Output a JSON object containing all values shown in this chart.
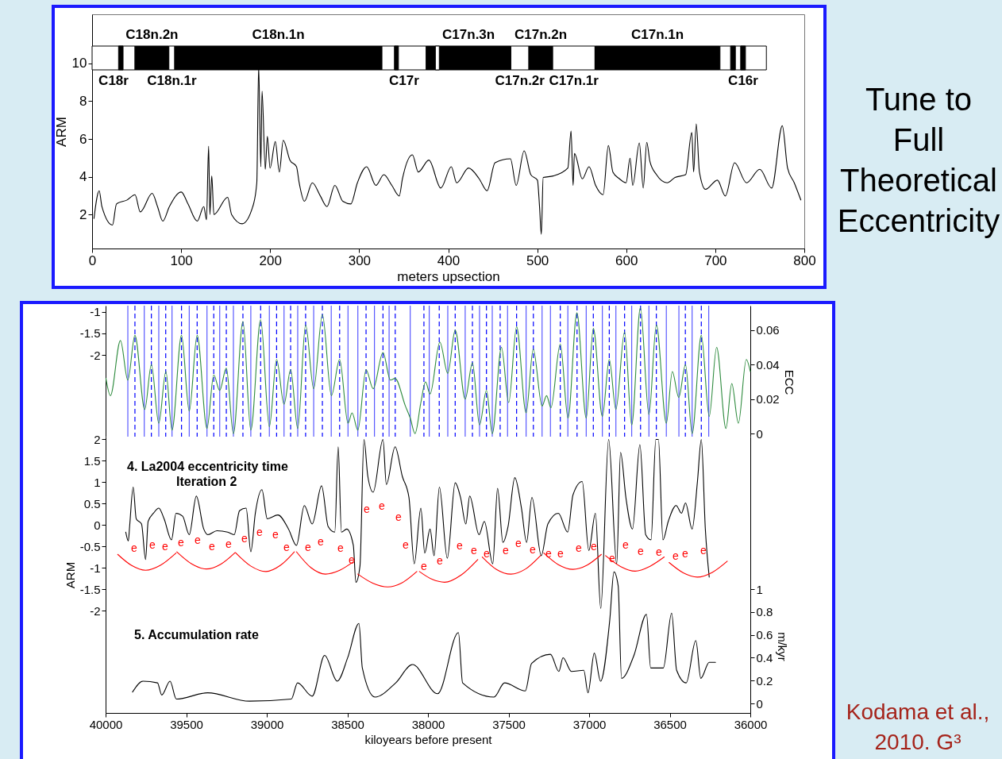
{
  "chart_data": [
    {
      "type": "line",
      "xlabel": "meters upsection",
      "ylabel": "ARM",
      "xlim": [
        0,
        800
      ],
      "xticks": [
        0,
        100,
        200,
        300,
        400,
        500,
        600,
        700,
        800
      ],
      "ylim": [
        0.2,
        12.6
      ],
      "yticks": [
        2,
        4,
        6,
        8,
        10
      ],
      "series": [
        {
          "color": "#000000",
          "x": [
            2.1,
            8.0,
            11.0,
            22.9,
            27.4,
            39.3,
            48.2,
            54.1,
            67.5,
            73.5,
            79.4,
            86.8,
            100.2,
            107.7,
            118.1,
            125.5,
            128.5,
            130.9,
            132.3,
            134.4,
            136.8,
            152.3,
            156.7,
            168.6,
            180.5,
            185.0,
            187.1,
            189.5,
            190.9,
            194.5,
            196.9,
            199.9,
            205.8,
            210.3,
            214.7,
            222.2,
            229.6,
            232.6,
            238.5,
            247.4,
            256.4,
            263.8,
            272.7,
            281.6,
            290.6,
            298.0,
            308.4,
            318.8,
            327.7,
            336.7,
            345.0,
            348.6,
            359.8,
            366.4,
            378.3,
            391.7,
            403.5,
            409.5,
            422.9,
            434.8,
            443.7,
            452.6,
            469.9,
            476.4,
            485.3,
            492.8,
            500.2,
            502.6,
            504.6,
            506.7,
            518.0,
            534.4,
            538.0,
            540.3,
            541.8,
            550.7,
            558.2,
            565.6,
            574.0,
            579.9,
            585.0,
            592.4,
            599.8,
            604.3,
            607.3,
            614.7,
            619.1,
            623.0,
            626.6,
            634.0,
            645.9,
            654.8,
            666.7,
            673.6,
            675.7,
            678.6,
            682.2,
            689.0,
            702.4,
            711.3,
            721.7,
            735.1,
            750.0,
            763.4,
            775.3,
            781.2,
            788.7,
            796.1
          ],
          "values": [
            1.79,
            3.26,
            2.42,
            1.44,
            2.56,
            2.77,
            3.05,
            2.14,
            3.12,
            2.42,
            1.65,
            2.42,
            3.19,
            2.56,
            1.65,
            2.42,
            1.72,
            5.62,
            2.0,
            4.04,
            2.0,
            2.91,
            2.0,
            1.51,
            2.42,
            3.68,
            9.86,
            4.53,
            8.53,
            4.39,
            6.14,
            4.46,
            5.86,
            4.25,
            5.93,
            4.88,
            4.53,
            3.68,
            2.7,
            3.68,
            2.98,
            2.42,
            3.54,
            2.7,
            2.56,
            3.68,
            4.53,
            3.54,
            4.11,
            3.54,
            2.98,
            3.89,
            5.16,
            4.25,
            4.88,
            3.4,
            4.53,
            3.68,
            4.46,
            3.89,
            3.26,
            4.74,
            4.95,
            3.54,
            5.37,
            4.11,
            3.82,
            2.42,
            0.95,
            3.96,
            4.04,
            4.46,
            6.42,
            3.54,
            5.23,
            3.89,
            4.53,
            3.54,
            3.05,
            5.65,
            4.25,
            3.89,
            3.68,
            4.98,
            3.54,
            5.79,
            3.4,
            5.82,
            4.81,
            4.11,
            3.68,
            3.96,
            4.11,
            6.35,
            4.25,
            6.8,
            4.25,
            3.33,
            3.82,
            2.98,
            4.74,
            3.68,
            4.39,
            3.4,
            6.7,
            4.46,
            3.68,
            2.77
          ]
        }
      ],
      "bands": [
        {
          "axis": "x",
          "from": 0,
          "to": 48.2,
          "label": "C18r",
          "color": "#ffffff"
        },
        {
          "axis": "x",
          "from": 29.7,
          "to": 34.8,
          "color": "#000000"
        },
        {
          "axis": "x",
          "from": 48.2,
          "to": 86.3,
          "label": "C18n.2n",
          "color": "#000000"
        },
        {
          "axis": "x",
          "from": 86.3,
          "to": 92.8,
          "label": "C18n.1r",
          "color": "#ffffff"
        },
        {
          "axis": "x",
          "from": 92.8,
          "to": 325.6,
          "label": "C18n.1n",
          "color": "#000000"
        },
        {
          "axis": "x",
          "from": 325.6,
          "to": 375.3,
          "label": "C17r",
          "color": "#ffffff"
        },
        {
          "axis": "x",
          "from": 339.6,
          "to": 344.1,
          "color": "#000000"
        },
        {
          "axis": "x",
          "from": 375.3,
          "to": 470.4,
          "label": "C17n.3n",
          "color": "#000000"
        },
        {
          "axis": "x",
          "from": 385.6,
          "to": 390.0,
          "color": "#ffffff"
        },
        {
          "axis": "x",
          "from": 470.4,
          "to": 490.6,
          "label": "C17n.2r",
          "color": "#ffffff"
        },
        {
          "axis": "x",
          "from": 490.6,
          "to": 517.4,
          "label": "C17n.2n",
          "color": "#000000"
        },
        {
          "axis": "x",
          "from": 517.4,
          "to": 564.9,
          "label": "C17n.1r",
          "color": "#ffffff"
        },
        {
          "axis": "x",
          "from": 564.9,
          "to": 705.3,
          "label": "C17n.1n",
          "color": "#000000"
        },
        {
          "axis": "x",
          "from": 705.3,
          "to": 757.4,
          "label": "C16r",
          "color": "#ffffff"
        },
        {
          "axis": "x",
          "from": 717.2,
          "to": 722.6,
          "color": "#000000"
        },
        {
          "axis": "x",
          "from": 728.5,
          "to": 733.9,
          "color": "#000000"
        }
      ],
      "annotations": [
        "Tune to Full Theoretical Eccentricity"
      ]
    },
    {
      "type": "line",
      "y2label": "ECC",
      "tick_labels": "y",
      "xlim": [
        40000,
        36000
      ],
      "xticks": [
        40000,
        39500,
        39000,
        38500,
        38000,
        37500,
        37000,
        36500,
        36000
      ],
      "ylim": [
        -3.907,
        -0.852
      ],
      "yticks": [
        -2,
        -1.5,
        -1
      ],
      "y2lim": [
        -0.0018,
        0.0742
      ],
      "y2ticks": [
        0,
        0.02,
        0.04,
        0.06
      ],
      "series": [
        {
          "color": "#2e8b3e",
          "axis": "y2",
          "x": [
            39998,
            39970,
            39908,
            39862,
            39818,
            39757,
            39716,
            39670,
            39626,
            39588,
            39529,
            39481,
            39432,
            39371,
            39329,
            39292,
            39251,
            39207,
            39148,
            39099,
            39038,
            38984,
            38939,
            38893,
            38852,
            38808,
            38759,
            38709,
            38655,
            38599,
            38548,
            38496,
            38471,
            38435,
            38384,
            38340,
            38279,
            38233,
            38204,
            38140,
            38110,
            38080,
            38044,
            38015,
            37987,
            37926,
            37877,
            37831,
            37769,
            37724,
            37680,
            37637,
            37601,
            37544,
            37499,
            37450,
            37391,
            37347,
            37292,
            37264,
            37237,
            37179,
            37131,
            37076,
            37018,
            36974,
            36918,
            36875,
            36834,
            36780,
            36736,
            36682,
            36629,
            36583,
            36521,
            36484,
            36444,
            36402,
            36361,
            36304,
            36255,
            36209,
            36151,
            36115,
            36074,
            36025,
            36000
          ],
          "values": [
            0.032,
            0.022,
            0.054,
            0.031,
            0.057,
            0.014,
            0.04,
            0.006,
            0.036,
            0.002,
            0.057,
            0.013,
            0.057,
            0.003,
            0.034,
            0.025,
            0.038,
            0.0,
            0.065,
            0.002,
            0.066,
            0.004,
            0.043,
            0.017,
            0.037,
            0.003,
            0.063,
            0.026,
            0.069,
            0.022,
            0.043,
            0.006,
            0.012,
            0.002,
            0.037,
            0.026,
            0.047,
            0.031,
            0.032,
            0.016,
            0.009,
            0.0,
            0.018,
            0.03,
            0.023,
            0.053,
            0.035,
            0.06,
            0.02,
            0.041,
            0.005,
            0.025,
            0.0,
            0.05,
            0.018,
            0.062,
            0.012,
            0.049,
            0.016,
            0.022,
            0.015,
            0.052,
            0.009,
            0.07,
            0.009,
            0.061,
            0.01,
            0.043,
            0.014,
            0.059,
            0.005,
            0.073,
            0.011,
            0.063,
            0.006,
            0.036,
            0.021,
            0.04,
            0.0,
            0.057,
            0.01,
            0.05,
            0.003,
            0.029,
            0.006,
            0.043,
            0.036
          ]
        }
      ],
      "ref_lines": [
        {
          "axis": "x",
          "value": 39862,
          "line_style": "solid",
          "color": "#5a5aff"
        },
        {
          "axis": "x",
          "value": 39818,
          "line_style": "dashed",
          "color": "#0000ff"
        },
        {
          "axis": "x",
          "value": 39760,
          "line_style": "solid",
          "color": "#5a5aff"
        },
        {
          "axis": "x",
          "value": 39716,
          "line_style": "dashed",
          "color": "#0000ff"
        },
        {
          "axis": "x",
          "value": 39670,
          "line_style": "solid",
          "color": "#5a5aff"
        },
        {
          "axis": "x",
          "value": 39627,
          "line_style": "dashed",
          "color": "#0000ff"
        },
        {
          "axis": "x",
          "value": 39588,
          "line_style": "solid",
          "color": "#5a5aff"
        },
        {
          "axis": "x",
          "value": 39529,
          "line_style": "dashed",
          "color": "#0000ff"
        },
        {
          "axis": "x",
          "value": 39481,
          "line_style": "solid",
          "color": "#5a5aff"
        },
        {
          "axis": "x",
          "value": 39432,
          "line_style": "dashed",
          "color": "#0000ff"
        },
        {
          "axis": "x",
          "value": 39371,
          "line_style": "solid",
          "color": "#5a5aff"
        },
        {
          "axis": "x",
          "value": 39329,
          "line_style": "dashed",
          "color": "#0000ff"
        },
        {
          "axis": "x",
          "value": 39292,
          "line_style": "solid",
          "color": "#5a5aff"
        },
        {
          "axis": "x",
          "value": 39251,
          "line_style": "dashed",
          "color": "#0000ff"
        },
        {
          "axis": "x",
          "value": 39207,
          "line_style": "solid",
          "color": "#5a5aff"
        },
        {
          "axis": "x",
          "value": 39148,
          "line_style": "dashed",
          "color": "#0000ff"
        },
        {
          "axis": "x",
          "value": 39099,
          "line_style": "solid",
          "color": "#5a5aff"
        },
        {
          "axis": "x",
          "value": 39038,
          "line_style": "dashed",
          "color": "#0000ff"
        },
        {
          "axis": "x",
          "value": 38984,
          "line_style": "solid",
          "color": "#5a5aff"
        },
        {
          "axis": "x",
          "value": 38939,
          "line_style": "dashed",
          "color": "#0000ff"
        },
        {
          "axis": "x",
          "value": 38893,
          "line_style": "solid",
          "color": "#5a5aff"
        },
        {
          "axis": "x",
          "value": 38852,
          "line_style": "dashed",
          "color": "#0000ff"
        },
        {
          "axis": "x",
          "value": 38808,
          "line_style": "solid",
          "color": "#5a5aff"
        },
        {
          "axis": "x",
          "value": 38759,
          "line_style": "dashed",
          "color": "#0000ff"
        },
        {
          "axis": "x",
          "value": 38709,
          "line_style": "solid",
          "color": "#5a5aff"
        },
        {
          "axis": "x",
          "value": 38655,
          "line_style": "dashed",
          "color": "#0000ff"
        },
        {
          "axis": "x",
          "value": 38600,
          "line_style": "solid",
          "color": "#5a5aff"
        },
        {
          "axis": "x",
          "value": 38548,
          "line_style": "dashed",
          "color": "#0000ff"
        },
        {
          "axis": "x",
          "value": 38496,
          "line_style": "solid",
          "color": "#5a5aff"
        },
        {
          "axis": "x",
          "value": 38435,
          "line_style": "solid",
          "color": "#5a5aff"
        },
        {
          "axis": "x",
          "value": 38384,
          "line_style": "dashed",
          "color": "#0000ff"
        },
        {
          "axis": "x",
          "value": 38332,
          "line_style": "solid",
          "color": "#5a5aff"
        },
        {
          "axis": "x",
          "value": 38279,
          "line_style": "dashed",
          "color": "#0000ff"
        },
        {
          "axis": "x",
          "value": 38241,
          "line_style": "solid",
          "color": "#5a5aff"
        },
        {
          "axis": "x",
          "value": 38203,
          "line_style": "dashed",
          "color": "#0000ff"
        },
        {
          "axis": "x",
          "value": 38110,
          "line_style": "solid",
          "color": "#5a5aff"
        },
        {
          "axis": "x",
          "value": 38025,
          "line_style": "dashed",
          "color": "#0000ff"
        },
        {
          "axis": "x",
          "value": 37992,
          "line_style": "solid",
          "color": "#5a5aff"
        },
        {
          "axis": "x",
          "value": 37930,
          "line_style": "dashed",
          "color": "#0000ff"
        },
        {
          "axis": "x",
          "value": 37877,
          "line_style": "solid",
          "color": "#5a5aff"
        },
        {
          "axis": "x",
          "value": 37831,
          "line_style": "dashed",
          "color": "#0000ff"
        },
        {
          "axis": "x",
          "value": 37769,
          "line_style": "solid",
          "color": "#5a5aff"
        },
        {
          "axis": "x",
          "value": 37724,
          "line_style": "dashed",
          "color": "#0000ff"
        },
        {
          "axis": "x",
          "value": 37680,
          "line_style": "solid",
          "color": "#5a5aff"
        },
        {
          "axis": "x",
          "value": 37637,
          "line_style": "dashed",
          "color": "#0000ff"
        },
        {
          "axis": "x",
          "value": 37601,
          "line_style": "solid",
          "color": "#5a5aff"
        },
        {
          "axis": "x",
          "value": 37552,
          "line_style": "dashed",
          "color": "#0000ff"
        },
        {
          "axis": "x",
          "value": 37506,
          "line_style": "solid",
          "color": "#5a5aff"
        },
        {
          "axis": "x",
          "value": 37450,
          "line_style": "dashed",
          "color": "#0000ff"
        },
        {
          "axis": "x",
          "value": 37391,
          "line_style": "solid",
          "color": "#5a5aff"
        },
        {
          "axis": "x",
          "value": 37346,
          "line_style": "dashed",
          "color": "#0000ff"
        },
        {
          "axis": "x",
          "value": 37292,
          "line_style": "solid",
          "color": "#5a5aff"
        },
        {
          "axis": "x",
          "value": 37240,
          "line_style": "solid",
          "color": "#5a5aff"
        },
        {
          "axis": "x",
          "value": 37179,
          "line_style": "dashed",
          "color": "#0000ff"
        },
        {
          "axis": "x",
          "value": 37132,
          "line_style": "solid",
          "color": "#5a5aff"
        },
        {
          "axis": "x",
          "value": 37075,
          "line_style": "dashed",
          "color": "#0000ff"
        },
        {
          "axis": "x",
          "value": 37018,
          "line_style": "solid",
          "color": "#5a5aff"
        },
        {
          "axis": "x",
          "value": 36974,
          "line_style": "dashed",
          "color": "#0000ff"
        },
        {
          "axis": "x",
          "value": 36918,
          "line_style": "solid",
          "color": "#5a5aff"
        },
        {
          "axis": "x",
          "value": 36875,
          "line_style": "dashed",
          "color": "#0000ff"
        },
        {
          "axis": "x",
          "value": 36834,
          "line_style": "solid",
          "color": "#5a5aff"
        },
        {
          "axis": "x",
          "value": 36780,
          "line_style": "dashed",
          "color": "#0000ff"
        },
        {
          "axis": "x",
          "value": 36736,
          "line_style": "solid",
          "color": "#5a5aff"
        },
        {
          "axis": "x",
          "value": 36681,
          "line_style": "dashed",
          "color": "#0000ff"
        },
        {
          "axis": "x",
          "value": 36629,
          "line_style": "solid",
          "color": "#5a5aff"
        },
        {
          "axis": "x",
          "value": 36583,
          "line_style": "dashed",
          "color": "#0000ff"
        },
        {
          "axis": "x",
          "value": 36521,
          "line_style": "solid",
          "color": "#5a5aff"
        },
        {
          "axis": "x",
          "value": 36443,
          "line_style": "solid",
          "color": "#5a5aff"
        },
        {
          "axis": "x",
          "value": 36403,
          "line_style": "dashed",
          "color": "#0000ff"
        },
        {
          "axis": "x",
          "value": 36361,
          "line_style": "solid",
          "color": "#5a5aff"
        },
        {
          "axis": "x",
          "value": 36304,
          "line_style": "dashed",
          "color": "#0000ff"
        },
        {
          "axis": "x",
          "value": 36258,
          "line_style": "solid",
          "color": "#5a5aff"
        }
      ]
    },
    {
      "type": "line",
      "xlabel": "kiloyears before present",
      "ylabel": "ARM",
      "y2label": "m/kyr",
      "xlim": [
        40000,
        36000
      ],
      "xticks": [
        40000,
        39500,
        39000,
        38500,
        38000,
        37500,
        37000,
        36500,
        36000
      ],
      "ylim": [
        -4.389,
        2.056
      ],
      "yticks": [
        -2,
        -1.5,
        -1,
        -0.5,
        0,
        0.5,
        1,
        1.5,
        2
      ],
      "y2lim": [
        -0.083,
        2.333
      ],
      "y2ticks": [
        0,
        0.2,
        0.4,
        0.6,
        0.8,
        1
      ],
      "series": [
        {
          "color": "#000000",
          "x": [
            39875,
            39859,
            39851,
            39829,
            39810,
            39777,
            39752,
            39736,
            39703,
            39670,
            39637,
            39591,
            39563,
            39522,
            39481,
            39437,
            39391,
            39366,
            39309,
            39243,
            39202,
            39169,
            39128,
            39099,
            39071,
            39030,
            38997,
            38931,
            38865,
            38816,
            38767,
            38718,
            38660,
            38619,
            38578,
            38557,
            38537,
            38504,
            38463,
            38447,
            38422,
            38397,
            38373,
            38340,
            38279,
            38258,
            38204,
            38159,
            38118,
            38085,
            38044,
            38020,
            37987,
            37962,
            37929,
            37880,
            37831,
            37798,
            37765,
            37741,
            37683,
            37650,
            37598,
            37568,
            37535,
            37503,
            37461,
            37420,
            37388,
            37355,
            37297,
            37256,
            37191,
            37133,
            37100,
            37043,
            37002,
            36961,
            36928,
            36879,
            36829,
            36805,
            36772,
            36731,
            36685,
            36649,
            36616,
            36586,
            36570,
            36542,
            36509,
            36460,
            36427,
            36402,
            36361,
            36328,
            36304,
            36279,
            36255
          ],
          "values": [
            -0.17,
            -0.38,
            -0.04,
            0.88,
            0.14,
            0.02,
            -0.81,
            0.08,
            0.27,
            0.39,
            0.14,
            -0.35,
            0.27,
            0.2,
            -0.23,
            0.67,
            -0.1,
            -0.23,
            -0.14,
            -0.17,
            -0.23,
            0.33,
            0.39,
            -0.63,
            0.27,
            0.82,
            0.14,
            0.23,
            -0.1,
            -0.48,
            0.45,
            0.02,
            0.91,
            -0.04,
            -0.17,
            1.82,
            -0.17,
            -0.1,
            -0.48,
            -1.34,
            -0.97,
            1.99,
            1.13,
            0.76,
            1.99,
            0.94,
            1.82,
            1.13,
            0.64,
            -0.91,
            0.39,
            -0.66,
            -0.1,
            -0.72,
            0.88,
            -0.78,
            0.98,
            0.64,
            0.02,
            0.67,
            -0.23,
            0.08,
            -0.91,
            0.85,
            -0.41,
            -0.04,
            1.1,
            0.39,
            -0.41,
            0.64,
            -0.72,
            0.02,
            0.27,
            -0.17,
            0.7,
            1.01,
            -0.6,
            0.27,
            -1.95,
            1.99,
            -0.91,
            1.69,
            0.64,
            -0.1,
            1.87,
            -0.23,
            -0.35,
            1.99,
            1.99,
            -0.35,
            0.08,
            0.45,
            0.27,
            0.51,
            -0.1,
            1.01,
            1.99,
            -0.1,
            -1.22
          ]
        },
        {
          "color": "#ff0000",
          "x": [
            39925,
            39838,
            39752,
            39658,
            39563
          ],
          "values": [
            -0.69,
            -0.95,
            -1.06,
            -0.94,
            -0.66
          ]
        },
        {
          "color": "#ff0000",
          "x": [
            39558,
            39466,
            39374,
            39286,
            39197
          ],
          "values": [
            -0.63,
            -0.91,
            -1.03,
            -0.92,
            -0.65
          ]
        },
        {
          "color": "#ff0000",
          "x": [
            39194,
            39100,
            39005,
            38917,
            38829
          ],
          "values": [
            -0.65,
            -0.96,
            -1.09,
            -0.95,
            -0.63
          ]
        },
        {
          "color": "#ff0000",
          "x": [
            38816,
            38726,
            38636,
            38547,
            38458
          ],
          "values": [
            -0.63,
            -1.0,
            -1.15,
            -1.06,
            -0.85
          ]
        },
        {
          "color": "#ff0000",
          "x": [
            38435,
            38343,
            38250,
            38160,
            38069
          ],
          "values": [
            -1.15,
            -1.36,
            -1.45,
            -1.35,
            -1.09
          ]
        },
        {
          "color": "#ff0000",
          "x": [
            38053,
            37975,
            37897,
            37794,
            37691
          ],
          "values": [
            -1.09,
            -1.27,
            -1.34,
            -1.17,
            -0.81
          ]
        },
        {
          "color": "#ff0000",
          "x": [
            37663,
            37575,
            37486,
            37394,
            37302
          ],
          "values": [
            -0.75,
            -1.04,
            -1.15,
            -1.03,
            -0.72
          ]
        },
        {
          "color": "#ff0000",
          "x": [
            37281,
            37191,
            37100,
            37012,
            36924
          ],
          "values": [
            -0.66,
            -0.93,
            -1.04,
            -0.94,
            -0.69
          ]
        },
        {
          "color": "#ff0000",
          "x": [
            36898,
            36806,
            36714,
            36624,
            36534
          ],
          "values": [
            -0.72,
            -0.97,
            -1.08,
            -0.97,
            -0.75
          ]
        },
        {
          "color": "#ff0000",
          "x": [
            36504,
            36416,
            36329,
            36236,
            36143
          ],
          "values": [
            -0.88,
            -1.12,
            -1.22,
            -1.11,
            -0.85
          ]
        },
        {
          "color": "#000000",
          "axis": "y2",
          "x": [
            39833,
            39768,
            39678,
            39652,
            39600,
            39561,
            39367,
            39107,
            38848,
            38809,
            38718,
            38641,
            38563,
            38498,
            38428,
            38407,
            38329,
            38200,
            38096,
            37940,
            37811,
            37785,
            37590,
            37525,
            37396,
            37357,
            37240,
            37188,
            37162,
            37110,
            37033,
            37007,
            36968,
            36929,
            36872,
            36846,
            36820,
            36799,
            36722,
            36644,
            36618,
            36540,
            36488,
            36457,
            36398,
            36338,
            36307,
            36255,
            36216
          ],
          "values": [
            0.1,
            0.195,
            0.18,
            0.074,
            0.195,
            0.038,
            0.093,
            0.02,
            0.038,
            0.18,
            0.064,
            0.42,
            0.195,
            0.4,
            0.7,
            0.31,
            0.056,
            0.18,
            0.34,
            0.085,
            0.62,
            0.18,
            0.056,
            0.18,
            0.11,
            0.35,
            0.43,
            0.28,
            0.4,
            0.28,
            0.29,
            0.093,
            0.44,
            0.195,
            0.73,
            1.15,
            1.03,
            0.22,
            0.42,
            0.78,
            0.31,
            0.31,
            0.79,
            0.29,
            0.18,
            0.55,
            0.22,
            0.36,
            0.36
          ]
        }
      ],
      "annotations": [
        "4. La2004 eccentricity time",
        "Iteration 2",
        "5. Accumulation rate",
        "Kodama et al., 2010. G³",
        "e",
        "e",
        "e",
        "e",
        "e",
        "e",
        "e",
        "e",
        "e",
        "e",
        "e",
        "e",
        "e",
        "e",
        "e",
        "e",
        "e",
        "e",
        "e",
        "e",
        "e",
        "e",
        "e",
        "e",
        "e",
        "e",
        "e",
        "e",
        "e",
        "e",
        "e",
        "e",
        "e",
        "e",
        "e",
        "e",
        "e",
        "e"
      ]
    }
  ]
}
